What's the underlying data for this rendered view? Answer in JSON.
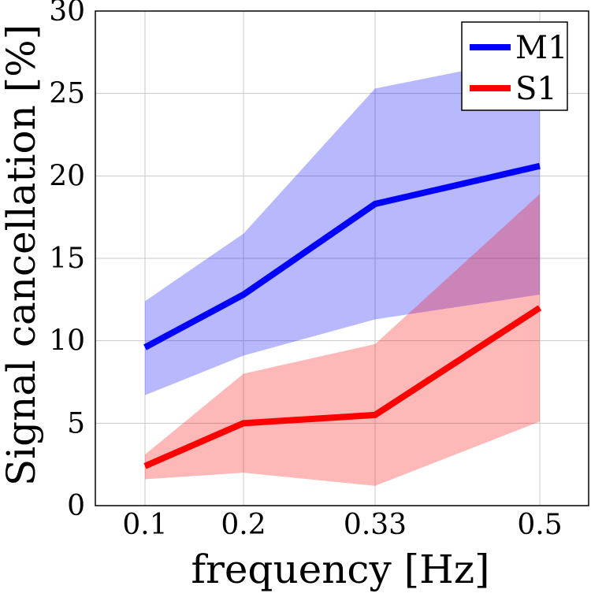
{
  "chart_data": {
    "type": "line",
    "title": "",
    "xlabel": "frequency [Hz]",
    "ylabel": "Signal cancellation [%]",
    "x": [
      0.1,
      0.2,
      0.33,
      0.5
    ],
    "x_tick_labels": [
      "0.1",
      "0.2",
      "0.33",
      "0.5"
    ],
    "y_ticks": [
      0,
      5,
      10,
      15,
      20,
      25,
      30
    ],
    "y_tick_labels": [
      "0",
      "5",
      "10",
      "15",
      "20",
      "25",
      "30"
    ],
    "ylim": [
      0,
      30
    ],
    "grid": true,
    "legend_position": "top-right",
    "series": [
      {
        "name": "M1",
        "color": "#0000ff",
        "band_color": "#b3b3ff",
        "values": [
          9.6,
          12.8,
          18.3,
          20.6
        ],
        "lower": [
          6.7,
          9.1,
          11.3,
          12.8
        ],
        "upper": [
          12.4,
          16.5,
          25.3,
          27.3
        ]
      },
      {
        "name": "S1",
        "color": "#ff0000",
        "band_color": "#ffb3b3",
        "values": [
          2.4,
          5.0,
          5.5,
          12.0
        ],
        "lower": [
          1.6,
          2.0,
          1.2,
          5.1
        ],
        "upper": [
          3.1,
          8.0,
          9.8,
          18.9
        ]
      }
    ]
  }
}
